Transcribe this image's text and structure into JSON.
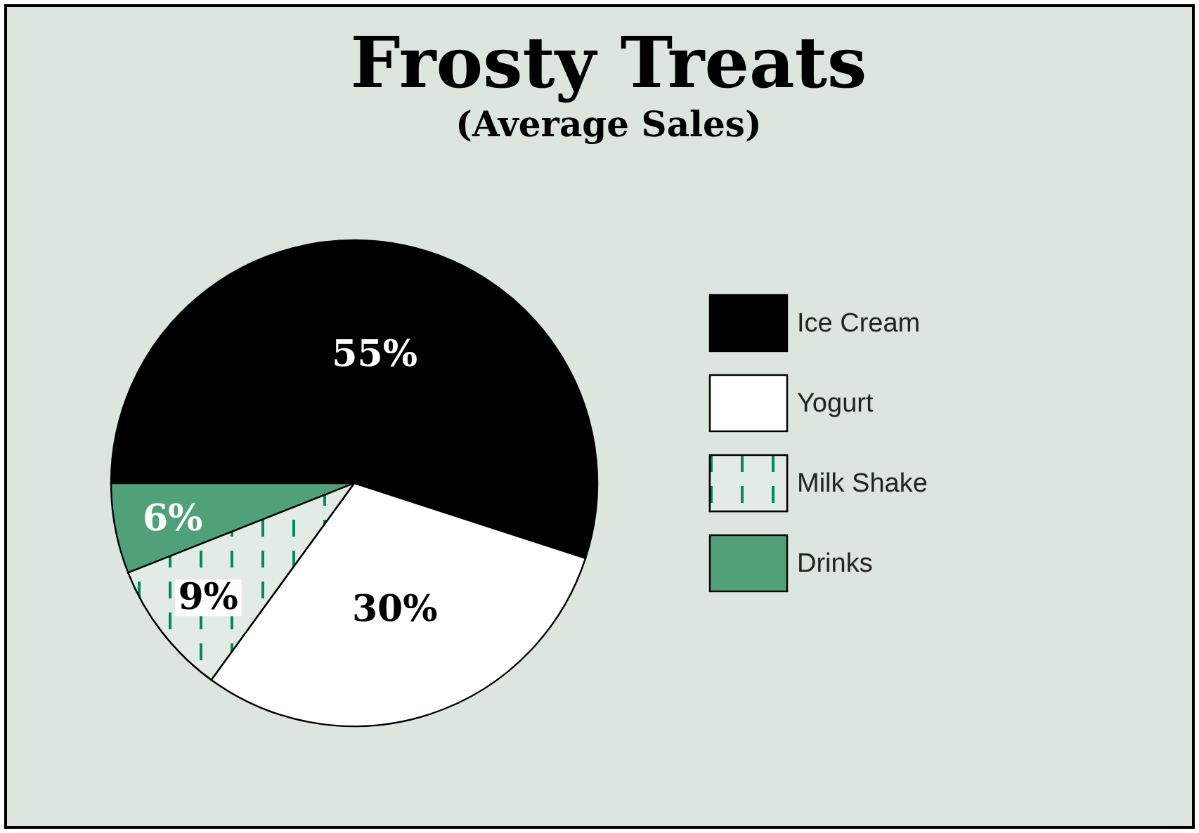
{
  "chart_data": {
    "type": "pie",
    "title": "Frosty Treats",
    "subtitle": "(Average Sales)",
    "categories": [
      "Ice Cream",
      "Yogurt",
      "Milk Shake",
      "Drinks"
    ],
    "values": [
      55,
      30,
      9,
      6
    ],
    "colors": [
      "#000000",
      "#ffffff",
      "#008a5e",
      "#50a07a"
    ],
    "value_labels": [
      "55%",
      "30%",
      "9%",
      "6%"
    ],
    "legend": "right"
  }
}
